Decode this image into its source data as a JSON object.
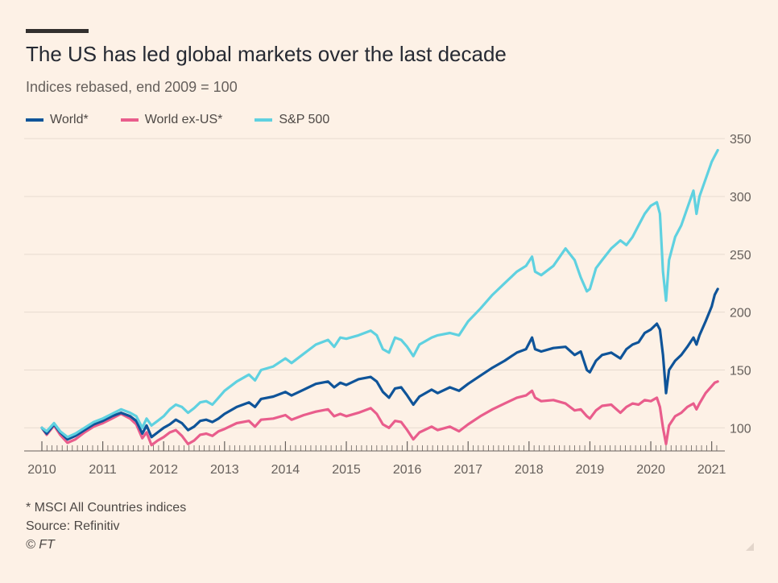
{
  "colors": {
    "background": "#fdf1e6",
    "grid": "#e7dbd0",
    "axis": "#66605c",
    "world": "#0f5499",
    "world_ex_us": "#e95d8c",
    "sp500": "#5fd1e0"
  },
  "chart_data": {
    "type": "line",
    "title": "The US has led global markets over the last decade",
    "subtitle": "Indices rebased, end 2009 = 100",
    "xlabel": "",
    "ylabel": "",
    "ylim": [
      80,
      355
    ],
    "xlim": [
      2010.0,
      2021.15
    ],
    "y_ticks": [
      100,
      150,
      200,
      250,
      300,
      350
    ],
    "x_ticks": [
      2010,
      2011,
      2012,
      2013,
      2014,
      2015,
      2016,
      2017,
      2018,
      2019,
      2020,
      2021
    ],
    "grid": true,
    "y_axis_position": "right",
    "legend_position": "top-left",
    "series": [
      {
        "name": "World*",
        "color": "#0f5499",
        "x": [
          2010.0,
          2010.08,
          2010.2,
          2010.3,
          2010.42,
          2010.55,
          2010.7,
          2010.85,
          2011.0,
          2011.15,
          2011.3,
          2011.45,
          2011.55,
          2011.65,
          2011.72,
          2011.8,
          2011.9,
          2012.0,
          2012.1,
          2012.2,
          2012.3,
          2012.4,
          2012.5,
          2012.6,
          2012.7,
          2012.8,
          2012.9,
          2013.0,
          2013.2,
          2013.4,
          2013.5,
          2013.6,
          2013.8,
          2014.0,
          2014.1,
          2014.3,
          2014.5,
          2014.7,
          2014.8,
          2014.9,
          2015.0,
          2015.2,
          2015.4,
          2015.5,
          2015.6,
          2015.7,
          2015.8,
          2015.9,
          2016.0,
          2016.1,
          2016.2,
          2016.4,
          2016.5,
          2016.7,
          2016.85,
          2017.0,
          2017.2,
          2017.4,
          2017.6,
          2017.8,
          2017.95,
          2018.05,
          2018.1,
          2018.2,
          2018.4,
          2018.6,
          2018.75,
          2018.85,
          2018.95,
          2019.0,
          2019.1,
          2019.2,
          2019.35,
          2019.5,
          2019.6,
          2019.7,
          2019.8,
          2019.9,
          2020.0,
          2020.1,
          2020.15,
          2020.2,
          2020.25,
          2020.3,
          2020.4,
          2020.5,
          2020.6,
          2020.7,
          2020.75,
          2020.8,
          2020.9,
          2021.0,
          2021.05,
          2021.1
        ],
        "values": [
          100,
          95,
          103,
          96,
          90,
          93,
          98,
          103,
          106,
          110,
          113,
          110,
          106,
          95,
          102,
          92,
          96,
          100,
          103,
          107,
          104,
          98,
          101,
          106,
          107,
          105,
          108,
          112,
          118,
          122,
          118,
          125,
          127,
          131,
          128,
          133,
          138,
          140,
          135,
          139,
          137,
          142,
          144,
          140,
          131,
          126,
          134,
          135,
          128,
          120,
          127,
          133,
          130,
          135,
          132,
          138,
          145,
          152,
          158,
          165,
          168,
          178,
          168,
          166,
          169,
          170,
          163,
          166,
          150,
          148,
          158,
          163,
          165,
          160,
          168,
          172,
          174,
          182,
          185,
          190,
          185,
          163,
          130,
          150,
          158,
          163,
          170,
          178,
          172,
          180,
          192,
          205,
          215,
          220
        ]
      },
      {
        "name": "World ex-US*",
        "color": "#e95d8c",
        "x": [
          2010.0,
          2010.08,
          2010.2,
          2010.3,
          2010.42,
          2010.55,
          2010.7,
          2010.85,
          2011.0,
          2011.15,
          2011.3,
          2011.45,
          2011.55,
          2011.65,
          2011.72,
          2011.8,
          2011.9,
          2012.0,
          2012.1,
          2012.2,
          2012.3,
          2012.4,
          2012.5,
          2012.6,
          2012.7,
          2012.8,
          2012.9,
          2013.0,
          2013.2,
          2013.4,
          2013.5,
          2013.6,
          2013.8,
          2014.0,
          2014.1,
          2014.3,
          2014.5,
          2014.7,
          2014.8,
          2014.9,
          2015.0,
          2015.2,
          2015.4,
          2015.5,
          2015.6,
          2015.7,
          2015.8,
          2015.9,
          2016.0,
          2016.1,
          2016.2,
          2016.4,
          2016.5,
          2016.7,
          2016.85,
          2017.0,
          2017.2,
          2017.4,
          2017.6,
          2017.8,
          2017.95,
          2018.05,
          2018.1,
          2018.2,
          2018.4,
          2018.6,
          2018.75,
          2018.85,
          2018.95,
          2019.0,
          2019.1,
          2019.2,
          2019.35,
          2019.5,
          2019.6,
          2019.7,
          2019.8,
          2019.9,
          2020.0,
          2020.1,
          2020.15,
          2020.2,
          2020.25,
          2020.3,
          2020.4,
          2020.5,
          2020.6,
          2020.7,
          2020.75,
          2020.8,
          2020.9,
          2021.0,
          2021.05,
          2021.1
        ],
        "values": [
          100,
          94,
          102,
          94,
          87,
          90,
          96,
          101,
          104,
          108,
          112,
          108,
          103,
          91,
          96,
          85,
          89,
          92,
          96,
          98,
          93,
          86,
          89,
          94,
          95,
          93,
          97,
          99,
          104,
          106,
          101,
          107,
          108,
          111,
          107,
          111,
          114,
          116,
          110,
          112,
          110,
          113,
          117,
          112,
          103,
          100,
          106,
          105,
          98,
          90,
          96,
          101,
          98,
          101,
          97,
          103,
          110,
          116,
          121,
          126,
          128,
          132,
          126,
          123,
          124,
          121,
          115,
          116,
          110,
          108,
          115,
          119,
          120,
          113,
          118,
          121,
          120,
          124,
          123,
          126,
          118,
          100,
          86,
          102,
          110,
          113,
          118,
          121,
          116,
          121,
          130,
          136,
          139,
          140
        ]
      },
      {
        "name": "S&P 500",
        "color": "#5fd1e0",
        "x": [
          2010.0,
          2010.08,
          2010.2,
          2010.3,
          2010.42,
          2010.55,
          2010.7,
          2010.85,
          2011.0,
          2011.15,
          2011.3,
          2011.45,
          2011.55,
          2011.65,
          2011.72,
          2011.8,
          2011.9,
          2012.0,
          2012.1,
          2012.2,
          2012.3,
          2012.4,
          2012.5,
          2012.6,
          2012.7,
          2012.8,
          2012.9,
          2013.0,
          2013.2,
          2013.4,
          2013.5,
          2013.6,
          2013.8,
          2014.0,
          2014.1,
          2014.3,
          2014.5,
          2014.7,
          2014.8,
          2014.9,
          2015.0,
          2015.2,
          2015.4,
          2015.5,
          2015.6,
          2015.7,
          2015.8,
          2015.9,
          2016.0,
          2016.1,
          2016.2,
          2016.4,
          2016.5,
          2016.7,
          2016.85,
          2017.0,
          2017.2,
          2017.4,
          2017.6,
          2017.8,
          2017.95,
          2018.05,
          2018.1,
          2018.2,
          2018.4,
          2018.6,
          2018.75,
          2018.85,
          2018.95,
          2019.0,
          2019.1,
          2019.2,
          2019.35,
          2019.5,
          2019.6,
          2019.7,
          2019.8,
          2019.9,
          2020.0,
          2020.1,
          2020.15,
          2020.2,
          2020.25,
          2020.3,
          2020.4,
          2020.5,
          2020.6,
          2020.7,
          2020.75,
          2020.8,
          2020.9,
          2021.0,
          2021.05,
          2021.1
        ],
        "values": [
          100,
          97,
          104,
          97,
          92,
          95,
          100,
          105,
          108,
          112,
          116,
          113,
          110,
          100,
          108,
          102,
          106,
          110,
          116,
          120,
          118,
          113,
          117,
          122,
          123,
          120,
          126,
          132,
          140,
          146,
          141,
          150,
          153,
          160,
          156,
          164,
          172,
          176,
          170,
          178,
          177,
          180,
          184,
          180,
          168,
          165,
          178,
          176,
          170,
          162,
          172,
          178,
          180,
          182,
          180,
          192,
          203,
          215,
          225,
          235,
          240,
          248,
          235,
          232,
          240,
          255,
          245,
          230,
          218,
          220,
          238,
          245,
          255,
          262,
          258,
          265,
          275,
          285,
          292,
          295,
          285,
          235,
          210,
          245,
          265,
          275,
          290,
          305,
          285,
          300,
          315,
          330,
          335,
          340
        ]
      }
    ]
  },
  "footnotes": {
    "note": "* MSCI All Countries indices",
    "source": "Source: Refinitiv",
    "credit": "© FT"
  }
}
